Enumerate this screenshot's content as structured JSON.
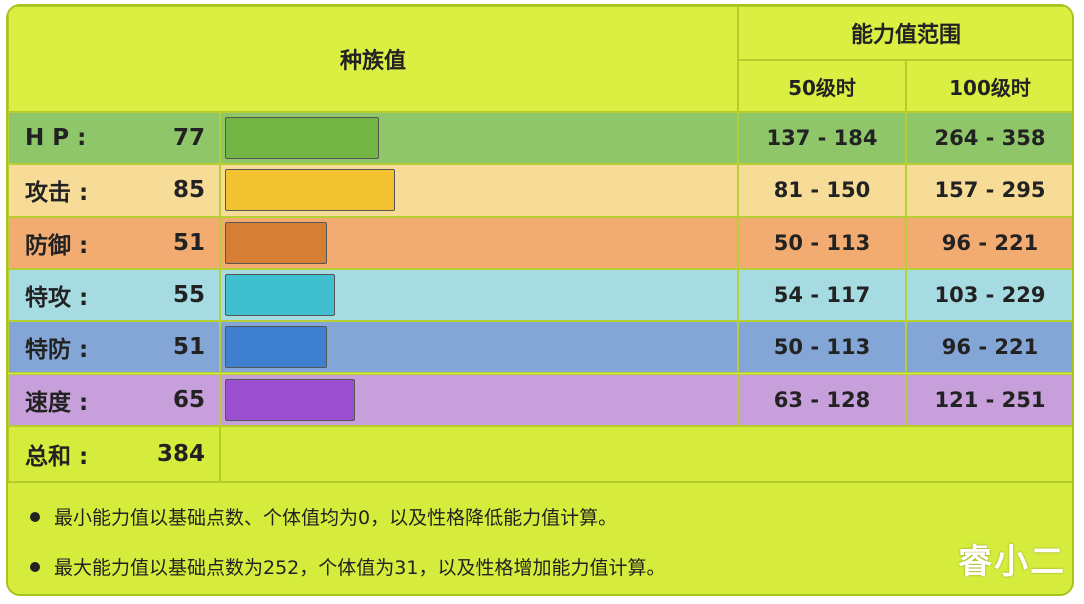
{
  "header": {
    "base_stats": "种族值",
    "stat_range": "能力值范围",
    "lv50": "50级时",
    "lv100": "100级时"
  },
  "rows": [
    {
      "label": "H P :",
      "value": "77",
      "fraction": 0.303,
      "color": "#8fc66a",
      "bar": "#73b545",
      "lv50": "137 - 184",
      "lv100": "264 - 358"
    },
    {
      "label": "攻击 :",
      "value": "85",
      "fraction": 0.335,
      "color": "#f7dc98",
      "bar": "#f2c230",
      "lv50": "81 - 150",
      "lv100": "157 - 295"
    },
    {
      "label": "防御 :",
      "value": "51",
      "fraction": 0.201,
      "color": "#f2ac72",
      "bar": "#d77e35",
      "lv50": "50 - 113",
      "lv100": "96 - 221"
    },
    {
      "label": "特攻 :",
      "value": "55",
      "fraction": 0.217,
      "color": "#a6dbe2",
      "bar": "#3fbfcf",
      "lv50": "54 - 117",
      "lv100": "103 - 229"
    },
    {
      "label": "特防 :",
      "value": "51",
      "fraction": 0.201,
      "color": "#84a6d6",
      "bar": "#3e7fd0",
      "lv50": "50 - 113",
      "lv100": "96 - 221"
    },
    {
      "label": "速度 :",
      "value": "65",
      "fraction": 0.256,
      "color": "#c7a0db",
      "bar": "#9b4fd0",
      "lv50": "63 - 128",
      "lv100": "121 - 251"
    }
  ],
  "total": {
    "label": "总和 :",
    "value": "384"
  },
  "notes": [
    "最小能力值以基础点数、个体值均为0，以及性格降低能力值计算。",
    "最大能力值以基础点数为252，个体值为31，以及性格增加能力值计算。"
  ],
  "watermark": "睿小二"
}
